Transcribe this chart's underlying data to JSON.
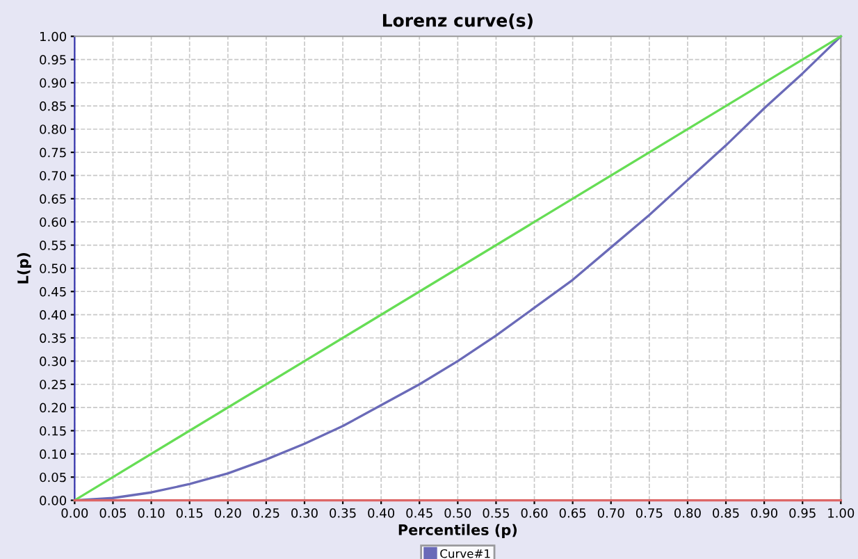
{
  "chart_data": {
    "type": "line",
    "title": "Lorenz curve(s)",
    "xlabel": "Percentiles (p)",
    "ylabel": "L(p)",
    "series": [
      {
        "name": "Curve#1",
        "color": "#6a6ab8",
        "x": [
          0,
          0.05,
          0.1,
          0.15,
          0.2,
          0.25,
          0.3,
          0.35,
          0.4,
          0.45,
          0.5,
          0.55,
          0.6,
          0.65,
          0.7,
          0.75,
          0.8,
          0.85,
          0.9,
          0.95,
          1
        ],
        "values": [
          0,
          0.005,
          0.017,
          0.035,
          0.058,
          0.088,
          0.122,
          0.16,
          0.205,
          0.25,
          0.3,
          0.355,
          0.415,
          0.475,
          0.545,
          0.615,
          0.69,
          0.765,
          0.845,
          0.92,
          1
        ]
      },
      {
        "color": "#66dd55",
        "x": [
          0,
          1
        ],
        "values": [
          0,
          1
        ]
      },
      {
        "color": "#dd6666",
        "x": [
          0,
          1
        ],
        "values": [
          0,
          0
        ]
      }
    ],
    "xlim": [
      0,
      1
    ],
    "ylim": [
      0,
      1
    ],
    "xticks": [
      {
        "value": 0,
        "label": "0.00"
      },
      {
        "value": 0.05,
        "label": "0.05"
      },
      {
        "value": 0.1,
        "label": "0.10"
      },
      {
        "value": 0.15,
        "label": "0.15"
      },
      {
        "value": 0.2,
        "label": "0.20"
      },
      {
        "value": 0.25,
        "label": "0.25"
      },
      {
        "value": 0.3,
        "label": "0.30"
      },
      {
        "value": 0.35,
        "label": "0.35"
      },
      {
        "value": 0.4,
        "label": "0.40"
      },
      {
        "value": 0.45,
        "label": "0.45"
      },
      {
        "value": 0.5,
        "label": "0.50"
      },
      {
        "value": 0.55,
        "label": "0.55"
      },
      {
        "value": 0.6,
        "label": "0.60"
      },
      {
        "value": 0.65,
        "label": "0.65"
      },
      {
        "value": 0.7,
        "label": "0.70"
      },
      {
        "value": 0.75,
        "label": "0.75"
      },
      {
        "value": 0.8,
        "label": "0.80"
      },
      {
        "value": 0.85,
        "label": "0.85"
      },
      {
        "value": 0.9,
        "label": "0.90"
      },
      {
        "value": 0.95,
        "label": "0.95"
      },
      {
        "value": 1,
        "label": "1.00"
      }
    ],
    "yticks": [
      {
        "value": 0,
        "label": "0.00"
      },
      {
        "value": 0.05,
        "label": "0.05"
      },
      {
        "value": 0.1,
        "label": "0.10"
      },
      {
        "value": 0.15,
        "label": "0.15"
      },
      {
        "value": 0.2,
        "label": "0.20"
      },
      {
        "value": 0.25,
        "label": "0.25"
      },
      {
        "value": 0.3,
        "label": "0.30"
      },
      {
        "value": 0.35,
        "label": "0.35"
      },
      {
        "value": 0.4,
        "label": "0.40"
      },
      {
        "value": 0.45,
        "label": "0.45"
      },
      {
        "value": 0.5,
        "label": "0.50"
      },
      {
        "value": 0.55,
        "label": "0.55"
      },
      {
        "value": 0.6,
        "label": "0.60"
      },
      {
        "value": 0.65,
        "label": "0.65"
      },
      {
        "value": 0.7,
        "label": "0.70"
      },
      {
        "value": 0.75,
        "label": "0.75"
      },
      {
        "value": 0.8,
        "label": "0.80"
      },
      {
        "value": 0.85,
        "label": "0.85"
      },
      {
        "value": 0.9,
        "label": "0.90"
      },
      {
        "value": 0.95,
        "label": "0.95"
      },
      {
        "value": 1,
        "label": "1.00"
      }
    ],
    "grid": true,
    "legend": "bottom",
    "marker": "none",
    "line_style": "solid"
  }
}
